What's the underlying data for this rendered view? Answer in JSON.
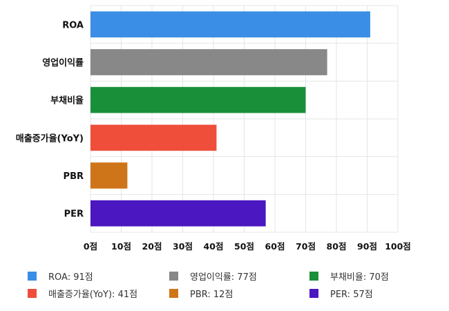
{
  "chart_data": {
    "type": "bar",
    "orientation": "horizontal",
    "categories": [
      "ROA",
      "영업이익률",
      "부채비율",
      "매출증가율(YoY)",
      "PBR",
      "PER"
    ],
    "values": [
      91,
      77,
      70,
      41,
      12,
      57
    ],
    "colors": [
      "#3a8ee6",
      "#888888",
      "#1a8f3a",
      "#ee4e3a",
      "#cf7519",
      "#4a17c0"
    ],
    "xlim": [
      0,
      100
    ],
    "xticks": [
      0,
      10,
      20,
      30,
      40,
      50,
      60,
      70,
      80,
      90,
      100
    ],
    "tick_suffix": "점",
    "grid": true,
    "legend_position": "bottom",
    "legend": [
      {
        "label": "ROA: 91점",
        "color": "#3a8ee6"
      },
      {
        "label": "영업이익률: 77점",
        "color": "#888888"
      },
      {
        "label": "부채비율: 70점",
        "color": "#1a8f3a"
      },
      {
        "label": "매출증가율(YoY): 41점",
        "color": "#ee4e3a"
      },
      {
        "label": "PBR: 12점",
        "color": "#cf7519"
      },
      {
        "label": "PER: 57점",
        "color": "#4a17c0"
      }
    ]
  }
}
